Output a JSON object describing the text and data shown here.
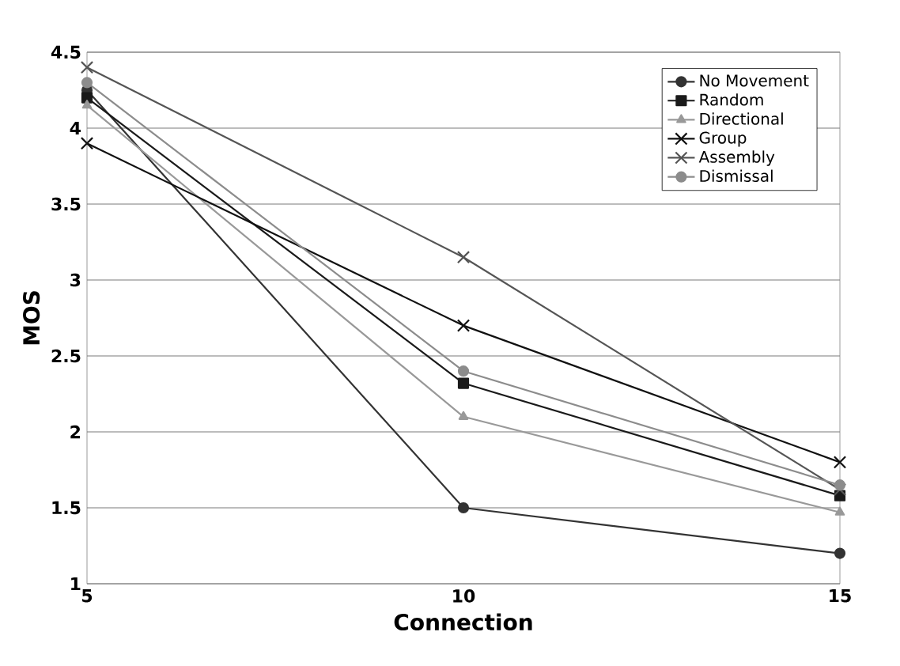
{
  "chart_data": {
    "type": "line",
    "xlabel": "Connection",
    "ylabel": "MOS",
    "x": [
      5,
      10,
      15
    ],
    "xlim": [
      5,
      15
    ],
    "xticks": [
      5,
      10,
      15
    ],
    "ylim": [
      1,
      4.5
    ],
    "yticks": [
      1,
      1.5,
      2,
      2.5,
      3,
      3.5,
      4,
      4.5
    ],
    "grid": "y",
    "legend": "top right",
    "series": [
      {
        "name": "No Movement",
        "color": "#333333",
        "marker": "circle",
        "values": [
          4.25,
          1.5,
          1.2
        ]
      },
      {
        "name": "Random",
        "color": "#1a1a1a",
        "marker": "square",
        "values": [
          4.2,
          2.32,
          1.58
        ]
      },
      {
        "name": "Directional",
        "color": "#999999",
        "marker": "triangle",
        "values": [
          4.15,
          2.1,
          1.47
        ]
      },
      {
        "name": "Group",
        "color": "#111111",
        "marker": "cross",
        "values": [
          3.9,
          2.7,
          1.8
        ]
      },
      {
        "name": "Assembly",
        "color": "#555555",
        "marker": "cross",
        "values": [
          4.4,
          3.15,
          1.62
        ]
      },
      {
        "name": "Dismissal",
        "color": "#8c8c8c",
        "marker": "circle",
        "values": [
          4.3,
          2.4,
          1.65
        ]
      }
    ]
  }
}
